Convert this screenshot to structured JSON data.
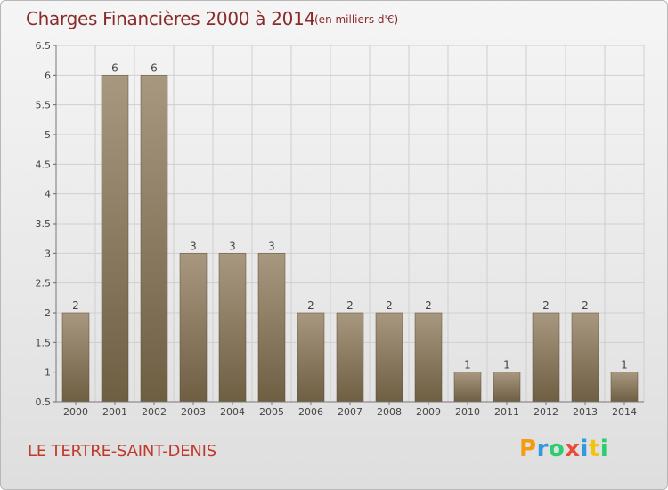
{
  "header": {
    "title": "Charges Financières 2000 à 2014",
    "subtitle": "(en milliers d'€)"
  },
  "commune": "LE TERTRE-SAINT-DENIS",
  "logo": {
    "letters": [
      {
        "char": "P",
        "color": "#f39c12"
      },
      {
        "char": "r",
        "color": "#3498db"
      },
      {
        "char": "o",
        "color": "#2ecc71"
      },
      {
        "char": "x",
        "color": "#e74c3c"
      },
      {
        "char": "i",
        "color": "#3498db"
      },
      {
        "char": "t",
        "color": "#f1c40f"
      },
      {
        "char": "i",
        "color": "#2ecc71"
      }
    ]
  },
  "chart_data": {
    "type": "bar",
    "title": "Charges Financières 2000 à 2014",
    "subtitle": "(en milliers d'€)",
    "categories": [
      "2000",
      "2001",
      "2002",
      "2003",
      "2004",
      "2005",
      "2006",
      "2007",
      "2008",
      "2009",
      "2010",
      "2011",
      "2012",
      "2013",
      "2014"
    ],
    "values": [
      2,
      6,
      6,
      3,
      3,
      3,
      2,
      2,
      2,
      2,
      1,
      1,
      2,
      2,
      1
    ],
    "data_labels": [
      "2",
      "6",
      "6",
      "3",
      "3",
      "3",
      "2",
      "2",
      "2",
      "2",
      "1",
      "1",
      "2",
      "2",
      "1"
    ],
    "ylim": [
      0.5,
      6.5
    ],
    "yticks": [
      "0.5",
      "1",
      "1.5",
      "2",
      "2.5",
      "3",
      "3.5",
      "4",
      "4.5",
      "5",
      "5.5",
      "6",
      "6.5"
    ],
    "grid": true,
    "bar_color_top": "#a89880",
    "bar_color_bottom": "#6e5e42",
    "grid_color": "#cfcfcf"
  }
}
